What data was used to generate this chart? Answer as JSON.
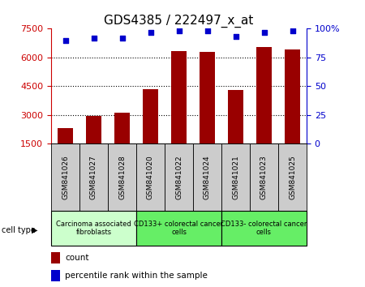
{
  "title": "GDS4385 / 222497_x_at",
  "samples": [
    "GSM841026",
    "GSM841027",
    "GSM841028",
    "GSM841020",
    "GSM841022",
    "GSM841024",
    "GSM841021",
    "GSM841023",
    "GSM841025"
  ],
  "counts": [
    2300,
    2950,
    3100,
    4350,
    6350,
    6300,
    4300,
    6550,
    6400
  ],
  "percentile_ranks": [
    90,
    92,
    92,
    97,
    98,
    98,
    93,
    97,
    98
  ],
  "groups": [
    {
      "label": "Carcinoma associated\nfibroblasts",
      "start": 0,
      "end": 3,
      "color": "#ccffcc"
    },
    {
      "label": "CD133+ colorectal cancer\ncells",
      "start": 3,
      "end": 6,
      "color": "#66ee66"
    },
    {
      "label": "CD133- colorectal cancer\ncells",
      "start": 6,
      "end": 9,
      "color": "#66ee66"
    }
  ],
  "bar_color": "#990000",
  "scatter_color": "#0000cc",
  "ylim_left": [
    1500,
    7500
  ],
  "ylim_right": [
    0,
    100
  ],
  "yticks_left": [
    1500,
    3000,
    4500,
    6000,
    7500
  ],
  "yticks_right": [
    0,
    25,
    50,
    75,
    100
  ],
  "ytick_right_labels": [
    "0",
    "25",
    "50",
    "75",
    "100%"
  ],
  "left_color": "#cc0000",
  "right_color": "#0000cc",
  "grid_lines": [
    3000,
    4500,
    6000
  ],
  "sample_box_color": "#cccccc",
  "fig_width": 4.5,
  "fig_height": 3.54,
  "dpi": 100
}
